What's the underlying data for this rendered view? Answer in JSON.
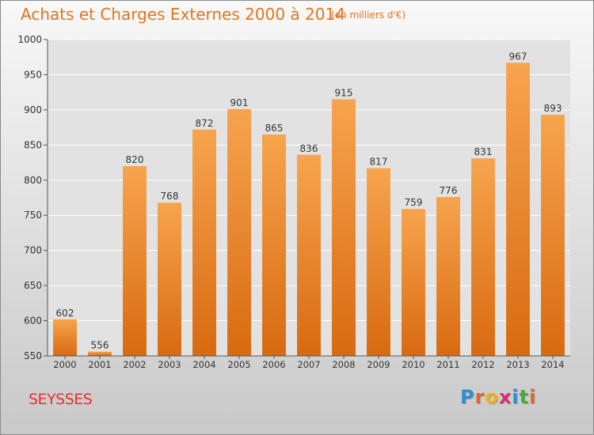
{
  "header": {
    "title": "Achats et Charges Externes 2000 à 2014",
    "unit": "(en milliers d'€)"
  },
  "footer": {
    "commune": "SEYSSES",
    "logo_letters": [
      "P",
      "r",
      "o",
      "x",
      "i",
      "t",
      "i"
    ],
    "logo_colors": [
      "#2e8fd8",
      "#e8632a",
      "#f0b018",
      "#d92f6e",
      "#2e8fd8",
      "#4aa843",
      "#e8632a"
    ]
  },
  "colors": {
    "bar_top": "#f7a44e",
    "bar_bottom": "#d86a10",
    "axis": "#555555",
    "grid": "#ffffff"
  },
  "chart_data": {
    "type": "bar",
    "categories": [
      "2000",
      "2001",
      "2002",
      "2003",
      "2004",
      "2005",
      "2006",
      "2007",
      "2008",
      "2009",
      "2010",
      "2011",
      "2012",
      "2013",
      "2014"
    ],
    "values": [
      602,
      556,
      820,
      768,
      872,
      901,
      865,
      836,
      915,
      817,
      759,
      776,
      831,
      967,
      893
    ],
    "ylim": [
      550,
      1000
    ],
    "yticks": [
      550,
      600,
      650,
      700,
      750,
      800,
      850,
      900,
      950,
      1000
    ],
    "grid": true,
    "data_labels": true
  }
}
